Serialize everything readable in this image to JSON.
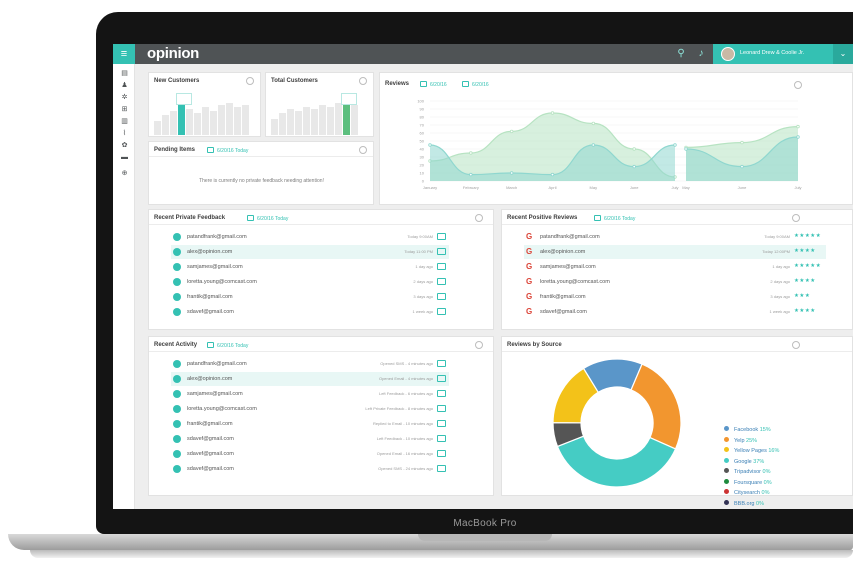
{
  "device": {
    "caption": "MacBook Pro"
  },
  "header": {
    "logo": "opinion",
    "user_name": "Leonard Drew & Coolie Jr.",
    "colors": {
      "accent": "#34c1b3",
      "bar": "#4f5355"
    }
  },
  "sidebar": {
    "icons": [
      "dashboard-icon",
      "users-icon",
      "settings-icon",
      "cart-icon",
      "inbox-icon",
      "chart-icon",
      "gear-icon",
      "mail-icon",
      "add-icon"
    ]
  },
  "new_customers": {
    "title": "New Customers"
  },
  "total_customers": {
    "title": "Total Customers"
  },
  "pending": {
    "title": "Pending Items",
    "date": "6/20/16 Today",
    "message": "There is currently no private feedback needing attention!"
  },
  "reviews": {
    "title": "Reviews",
    "date_from": "6/20/16",
    "date_to": "6/20/16"
  },
  "chart_data": {
    "type": "area",
    "title": "Reviews",
    "x": [
      "January",
      "February",
      "March",
      "April",
      "May",
      "June",
      "July",
      "May",
      "June",
      "July"
    ],
    "y_ticks": [
      "100",
      "90",
      "80",
      "70",
      "60",
      "50",
      "40",
      "30",
      "20",
      "10",
      "0"
    ],
    "ylim": [
      0,
      100
    ],
    "series": [
      {
        "color": "#b7e3c2",
        "values": [
          25,
          35,
          62,
          85,
          72,
          40,
          5,
          42,
          48,
          68
        ]
      },
      {
        "color": "#8fd7cf",
        "values": [
          45,
          8,
          10,
          8,
          45,
          18,
          45,
          40,
          18,
          55
        ]
      }
    ]
  },
  "private_feedback": {
    "title": "Recent Private Feedback",
    "date": "6/20/16 Today",
    "rows": [
      {
        "email": "patandfrank@gmail.com",
        "time": "Today 9:00AM"
      },
      {
        "email": "alex@opinion.com",
        "time": "Today 11:00 PM"
      },
      {
        "email": "samjames@gmail.com",
        "time": "1 day ago"
      },
      {
        "email": "loretta.young@comcast.com",
        "time": "2 days ago"
      },
      {
        "email": "frantik@gmail.com",
        "time": "3 days ago"
      },
      {
        "email": "sdavef@gmail.com",
        "time": "1 week ago"
      }
    ]
  },
  "positive_reviews": {
    "title": "Recent Positive Reviews",
    "date": "6/20/16 Today",
    "rows": [
      {
        "email": "patandfrank@gmail.com",
        "time": "Today 9:00AM",
        "stars": "★★★★★"
      },
      {
        "email": "alex@opinion.com",
        "time": "Today 12:00PM",
        "stars": "★★★★"
      },
      {
        "email": "samjames@gmail.com",
        "time": "1 day ago",
        "stars": "★★★★★"
      },
      {
        "email": "loretta.young@comcast.com",
        "time": "2 days ago",
        "stars": "★★★★"
      },
      {
        "email": "frantik@gmail.com",
        "time": "3 days ago",
        "stars": "★★★"
      },
      {
        "email": "sdavef@gmail.com",
        "time": "1 week ago",
        "stars": "★★★★"
      }
    ]
  },
  "activity": {
    "title": "Recent Activity",
    "date": "6/20/16 Today",
    "rows": [
      {
        "email": "patandfrank@gmail.com",
        "time": "Opened SMS - 4 minutes ago"
      },
      {
        "email": "alex@opinion.com",
        "time": "Opened Email - 4 minutes ago"
      },
      {
        "email": "samjames@gmail.com",
        "time": "Left Feedback - 6 minutes ago"
      },
      {
        "email": "loretta.young@comcast.com",
        "time": "Left Private Feedback - 8 minutes ago"
      },
      {
        "email": "frantik@gmail.com",
        "time": "Replied to Email - 10 minutes ago"
      },
      {
        "email": "sdavef@gmail.com",
        "time": "Left Feedback - 10 minutes ago"
      },
      {
        "email": "sdavef@gmail.com",
        "time": "Opened Email - 16 minutes ago"
      },
      {
        "email": "sdavef@gmail.com",
        "time": "Opened SMS - 24 minutes ago"
      }
    ]
  },
  "sources": {
    "title": "Reviews by Source",
    "chart_data": {
      "type": "pie",
      "slices": [
        {
          "label": "Facebook",
          "value": 15,
          "pct": "15%",
          "color": "#5a96c9"
        },
        {
          "label": "Yelp",
          "value": 25,
          "pct": "25%",
          "color": "#f2962f"
        },
        {
          "label": "Yellow Pages",
          "value": 16,
          "pct": "16%",
          "color": "#f3c219"
        },
        {
          "label": "Google",
          "value": 37,
          "pct": "37%",
          "color": "#45ccc4"
        },
        {
          "label": "Tripadvisor",
          "value": 0,
          "pct": "0%",
          "color": "#555555"
        },
        {
          "label": "Foursquare",
          "value": 0,
          "pct": "0%",
          "color": "#1e8a3e"
        },
        {
          "label": "Citysearch",
          "value": 0,
          "pct": "0%",
          "color": "#cc3333"
        },
        {
          "label": "BBB.org",
          "value": 0,
          "pct": "0%",
          "color": "#333355"
        }
      ],
      "donut_slices": [
        {
          "color": "#5a96c9",
          "value": 15
        },
        {
          "color": "#f2962f",
          "value": 25
        },
        {
          "color": "#45ccc4",
          "value": 37
        },
        {
          "color": "#555555",
          "value": 6
        },
        {
          "color": "#f3c219",
          "value": 16
        }
      ]
    }
  }
}
